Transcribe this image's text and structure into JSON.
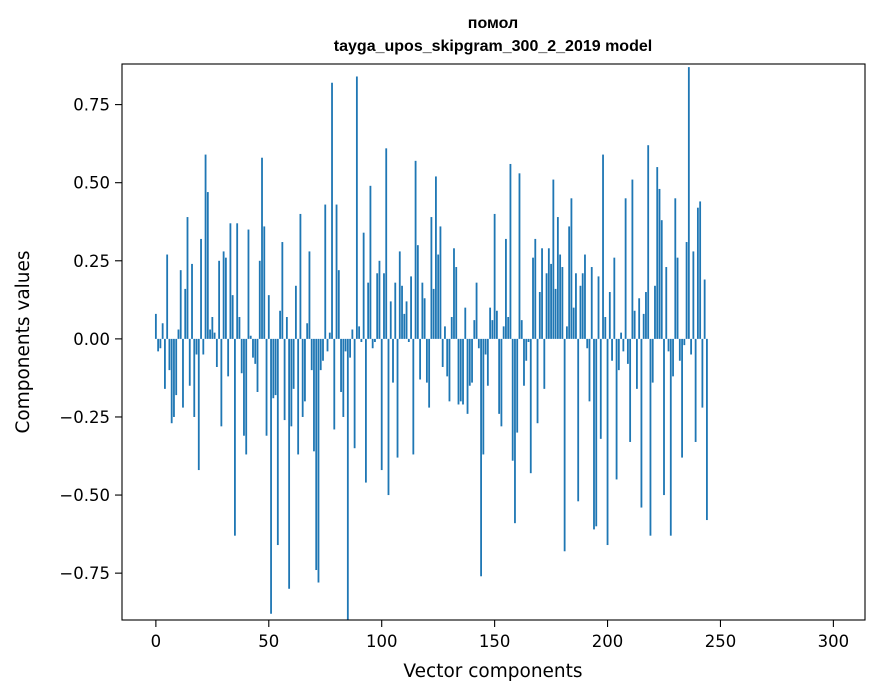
{
  "chart_data": {
    "type": "bar",
    "title": "помол",
    "subtitle": "tayga_upos_skipgram_300_2_2019 model",
    "xlabel": "Vector components",
    "ylabel": "Components values",
    "xlim": [
      -15,
      314
    ],
    "ylim": [
      -0.9,
      0.88
    ],
    "xticks": [
      0,
      50,
      100,
      150,
      200,
      250,
      300
    ],
    "yticks": [
      -0.75,
      -0.5,
      -0.25,
      0.0,
      0.25,
      0.5,
      0.75
    ],
    "xtick_labels": [
      "0",
      "50",
      "100",
      "150",
      "200",
      "250",
      "300"
    ],
    "ytick_labels": [
      "−0.75",
      "−0.50",
      "−0.25",
      "0.00",
      "0.25",
      "0.50",
      "0.75"
    ],
    "grid": false,
    "bar_color": "#1f77b4",
    "values": [
      0.08,
      -0.04,
      -0.03,
      0.05,
      -0.16,
      0.27,
      -0.1,
      -0.27,
      -0.25,
      -0.18,
      0.03,
      0.22,
      -0.22,
      0.16,
      0.39,
      -0.15,
      0.24,
      -0.25,
      -0.05,
      -0.42,
      0.32,
      -0.05,
      0.59,
      0.47,
      0.03,
      0.07,
      0.02,
      -0.09,
      0.25,
      -0.28,
      0.28,
      0.26,
      -0.12,
      0.37,
      0.14,
      -0.63,
      0.37,
      0.07,
      -0.11,
      -0.31,
      -0.37,
      0.35,
      0.01,
      -0.06,
      -0.08,
      -0.17,
      0.25,
      0.58,
      0.36,
      -0.31,
      0.14,
      -0.88,
      -0.19,
      -0.18,
      -0.66,
      0.09,
      0.31,
      -0.26,
      0.07,
      -0.8,
      -0.28,
      -0.16,
      0.17,
      -0.37,
      0.4,
      -0.25,
      -0.2,
      0.05,
      0.28,
      -0.1,
      -0.36,
      -0.74,
      -0.78,
      -0.1,
      -0.07,
      0.43,
      -0.04,
      0.02,
      0.82,
      -0.29,
      0.43,
      0.22,
      -0.17,
      -0.25,
      -0.04,
      -0.9,
      -0.06,
      0.03,
      -0.35,
      0.84,
      0.04,
      -0.01,
      0.34,
      -0.46,
      0.18,
      0.49,
      -0.03,
      -0.01,
      0.21,
      0.25,
      -0.42,
      0.21,
      0.61,
      -0.5,
      0.12,
      -0.14,
      0.18,
      -0.38,
      0.28,
      0.17,
      0.08,
      0.12,
      -0.01,
      0.2,
      -0.37,
      0.57,
      0.3,
      -0.13,
      0.18,
      0.13,
      -0.14,
      -0.22,
      0.39,
      0.16,
      0.52,
      0.27,
      0.36,
      -0.09,
      0.04,
      -0.12,
      -0.2,
      0.07,
      0.29,
      0.23,
      -0.21,
      -0.2,
      -0.21,
      0.1,
      -0.24,
      -0.15,
      -0.14,
      0.06,
      0.18,
      -0.03,
      -0.76,
      -0.37,
      -0.05,
      -0.15,
      0.1,
      0.06,
      0.4,
      0.09,
      -0.24,
      -0.28,
      0.04,
      0.32,
      0.07,
      0.56,
      -0.39,
      -0.59,
      -0.3,
      0.53,
      0.06,
      -0.15,
      -0.07,
      -0.01,
      -0.43,
      0.26,
      0.32,
      -0.27,
      0.15,
      0.29,
      -0.16,
      0.21,
      0.29,
      0.24,
      0.51,
      0.16,
      0.39,
      0.27,
      0.23,
      -0.68,
      0.04,
      0.36,
      0.45,
      0.1,
      0.21,
      -0.52,
      0.17,
      0.21,
      0.27,
      -0.03,
      -0.2,
      0.23,
      -0.61,
      -0.6,
      0.2,
      -0.32,
      0.59,
      0.07,
      -0.66,
      0.15,
      -0.07,
      0.26,
      -0.45,
      -0.1,
      0.02,
      -0.04,
      0.45,
      -0.08,
      -0.33,
      0.51,
      0.09,
      -0.16,
      0.13,
      -0.54,
      0.08,
      0.15,
      0.62,
      -0.63,
      -0.14,
      0.17,
      0.55,
      0.48,
      0.38,
      -0.5,
      0.23,
      -0.04,
      -0.63,
      -0.12,
      0.45,
      0.26,
      -0.07,
      -0.38,
      -0.02,
      0.31,
      0.87,
      -0.05,
      0.28,
      -0.33,
      0.42,
      0.44,
      -0.22,
      0.19,
      -0.58
    ]
  }
}
